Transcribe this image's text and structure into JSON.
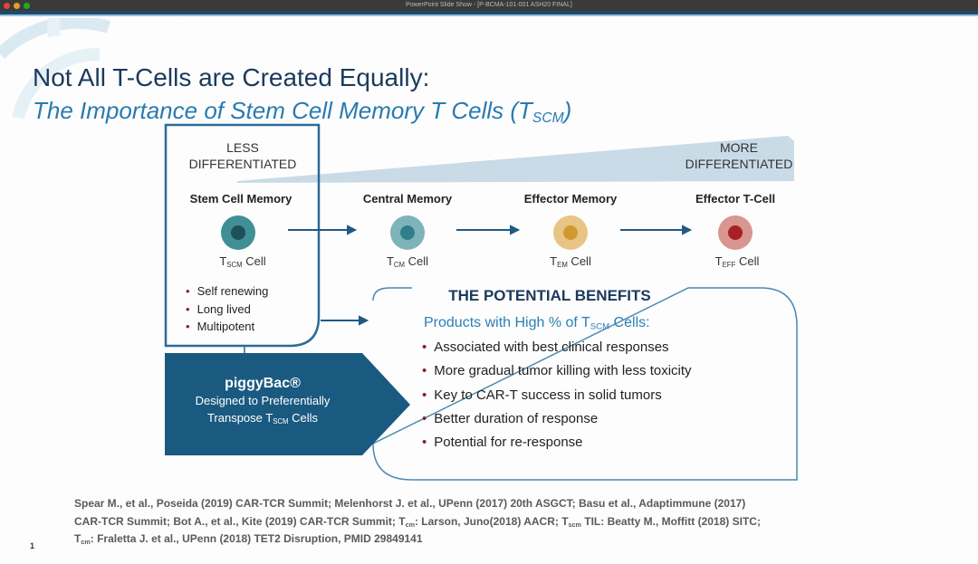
{
  "window": {
    "title": "PowerPoint Slide Show - [P-BCMA-101-001 ASH20 FINAL]"
  },
  "slide": {
    "title": "Not All T-Cells are Created Equally:",
    "subtitle": {
      "main": "The Importance of Stem Cell Memory T Cells (T",
      "sub": "SCM",
      "end": ")"
    },
    "less": [
      "LESS",
      "DIFFERENTIATED"
    ],
    "more": [
      "MORE",
      "DIFFERENTIATED"
    ],
    "cells": [
      {
        "name": "Stem Cell Memory",
        "t": "T",
        "sub": "SCM",
        "cell": " Cell",
        "outer": "#3f8f94",
        "inner": "#1f4f58"
      },
      {
        "name": "Central Memory",
        "t": "T",
        "sub": "CM",
        "cell": " Cell",
        "outer": "#7fb3ba",
        "inner": "#2f7f8a"
      },
      {
        "name": "Effector Memory",
        "t": "T",
        "sub": "EM",
        "cell": " Cell",
        "outer": "#e8c585",
        "inner": "#d09a30"
      },
      {
        "name": "Effector T-Cell",
        "t": "T",
        "sub": "EFF",
        "cell": " Cell",
        "outer": "#d99590",
        "inner": "#a81f24"
      }
    ],
    "tscm_bullets": [
      "Self renewing",
      "Long lived",
      "Multipotent"
    ],
    "piggybac": {
      "title": "piggyBac®",
      "line1": "Designed to Preferentially",
      "line2a": "Transpose T",
      "line2sub": "SCM",
      "line2b": " Cells"
    },
    "benefits": {
      "heading": "THE POTENTIAL BENEFITS",
      "sub_main": "Products with High % of T",
      "sub_sub": "SCM",
      "sub_end": " Cells:",
      "items": [
        "Associated with best clinical responses",
        "More gradual tumor killing with less toxicity",
        "Key to CAR-T success in solid tumors",
        "Better duration of response",
        "Potential for re-response"
      ]
    },
    "footnotes": {
      "l1": "Spear M., et al., Poseida (2019) CAR-TCR Summit;  Melenhorst J. et al., UPenn (2017) 20th ASGCT;   Basu et al., Adaptimmune (2017)",
      "l2a": "CAR-TCR Summit;  Bot A., et al., Kite (2019) CAR-TCR Summit;  T",
      "l2s1": "cm",
      "l2b": ": Larson, Juno(2018) AACR;  T",
      "l2s2": "scm",
      "l2c": " TIL: Beatty M., Moffitt (2018) SITC;",
      "l3a": "T",
      "l3s": "cm",
      "l3b": ": Fraletta J. et al., UPenn (2018) TET2 Disruption, PMID 29849141"
    },
    "page_number": "1"
  },
  "colors": {
    "title": "#1b3a5c",
    "accent": "#2a7ab0",
    "piggybac": "#1a5a80"
  }
}
